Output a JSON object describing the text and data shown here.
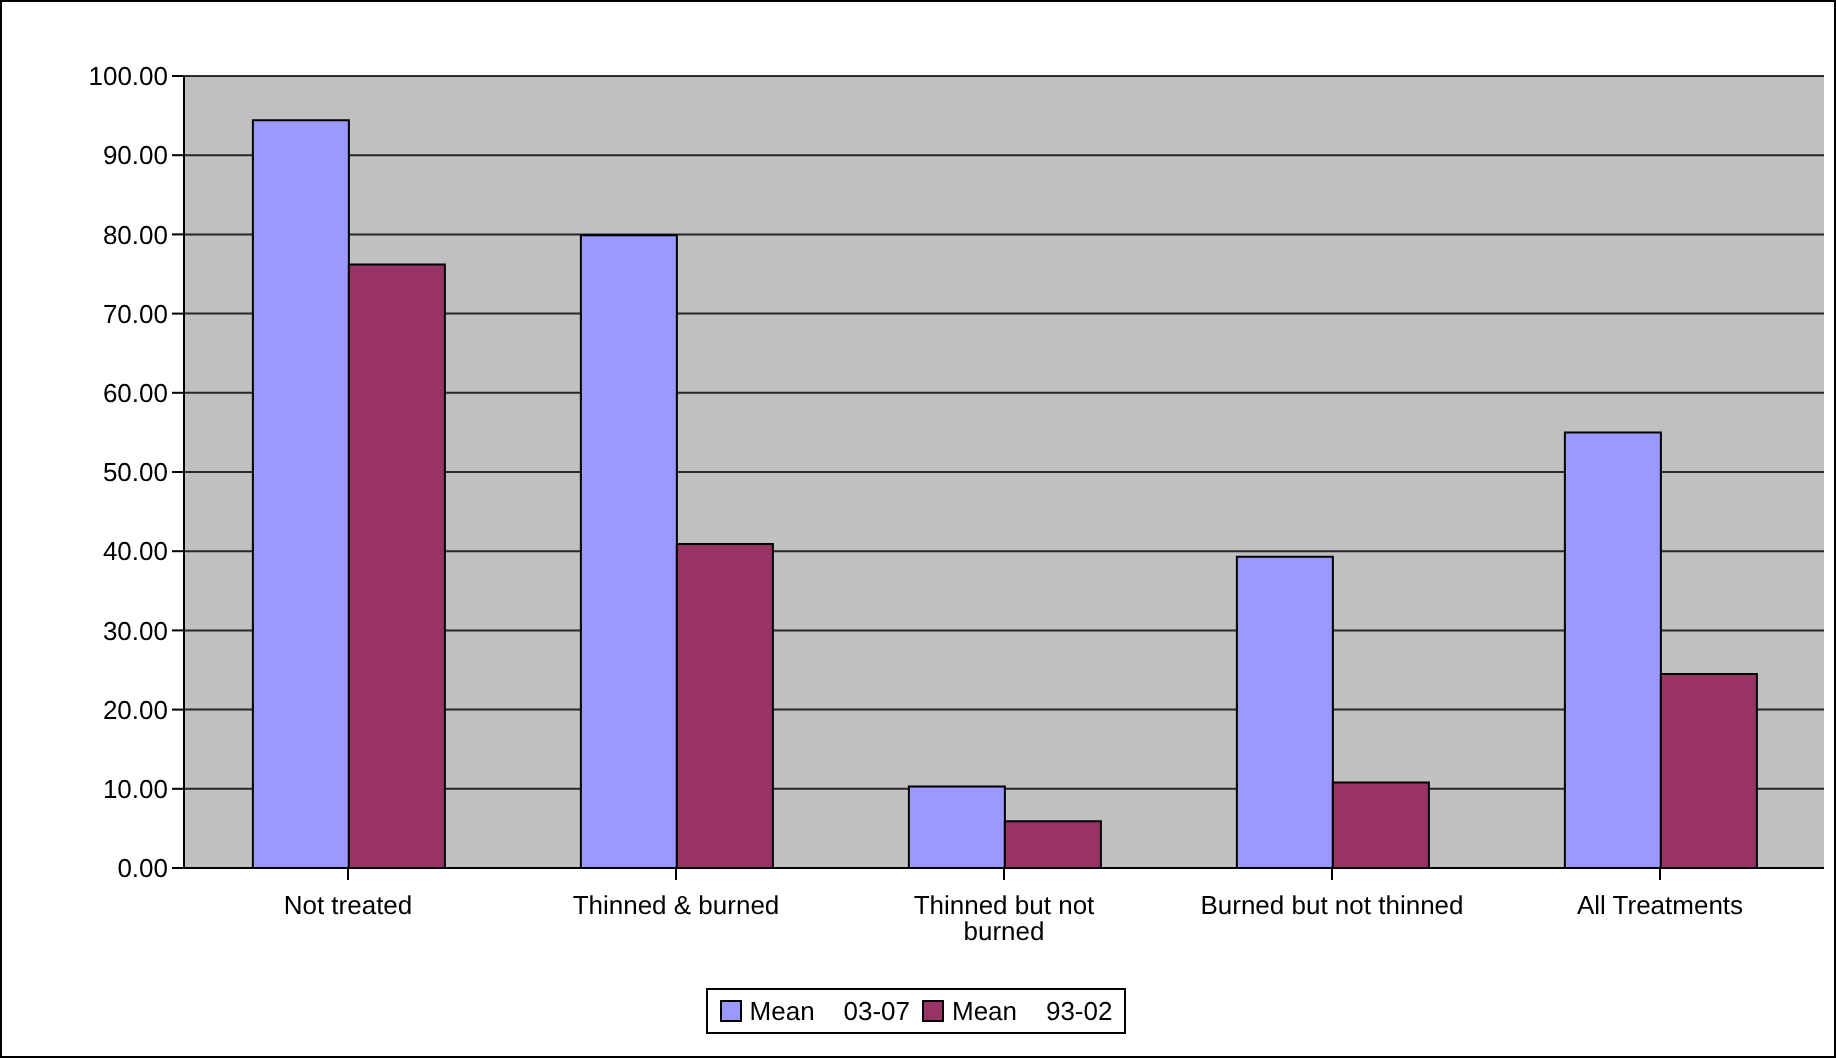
{
  "chart_data": {
    "type": "bar",
    "categories": [
      "Not treated",
      "Thinned & burned",
      "Thinned but not burned",
      "Burned but not thinned",
      "All Treatments"
    ],
    "series": [
      {
        "name": "Mean    03-07",
        "color": "#9999ff",
        "values": [
          94.4,
          79.9,
          10.3,
          39.3,
          55.0
        ]
      },
      {
        "name": "Mean    93-02",
        "color": "#993366",
        "values": [
          76.2,
          40.9,
          5.9,
          10.8,
          24.5
        ]
      }
    ],
    "ylim": [
      0,
      100
    ],
    "yticks": [
      {
        "value": 0,
        "label": "0.00"
      },
      {
        "value": 10,
        "label": "10.00"
      },
      {
        "value": 20,
        "label": "20.00"
      },
      {
        "value": 30,
        "label": "30.00"
      },
      {
        "value": 40,
        "label": "40.00"
      },
      {
        "value": 50,
        "label": "50.00"
      },
      {
        "value": 60,
        "label": "60.00"
      },
      {
        "value": 70,
        "label": "70.00"
      },
      {
        "value": 80,
        "label": "80.00"
      },
      {
        "value": 90,
        "label": "90.00"
      },
      {
        "value": 100,
        "label": "100.00"
      }
    ],
    "grid": "y",
    "legend": "bottom"
  }
}
